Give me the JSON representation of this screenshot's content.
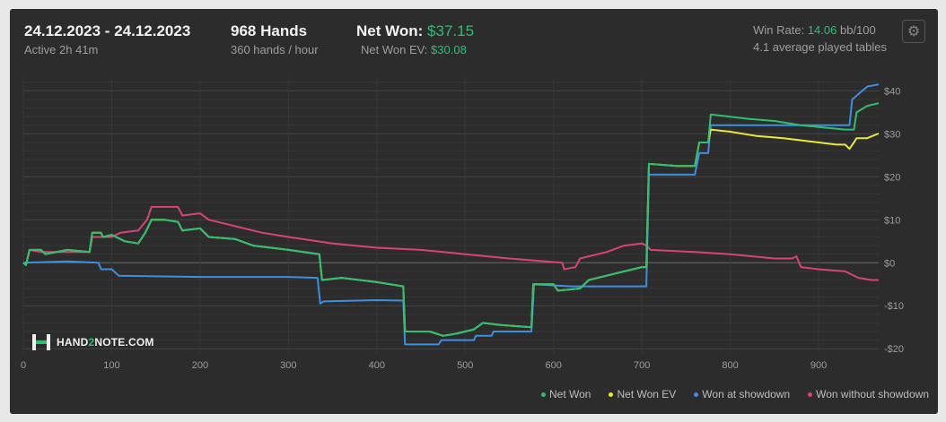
{
  "header": {
    "date_range": "24.12.2023 - 24.12.2023",
    "active": "Active 2h 41m",
    "hands": "968 Hands",
    "hands_per_hour": "360 hands / hour",
    "net_won_label": "Net Won:",
    "net_won_value": "$37.15",
    "net_won_ev_label": "Net Won  EV:",
    "net_won_ev_value": "$30.08",
    "win_rate_label": "Win Rate:",
    "win_rate_value": "14.06",
    "win_rate_unit": "bb/100",
    "avg_tables": "4.1 average played tables",
    "settings_icon": "gear-icon"
  },
  "logo": {
    "text_pre": "HAND",
    "text_mid": "2",
    "text_post": "NOTE.COM"
  },
  "colors": {
    "net_won": "#2fbf71",
    "net_won_ev": "#e8e83a",
    "showdown": "#3d8fe0",
    "non_showdown": "#d6457a",
    "background": "#2c2c2c"
  },
  "chart_data": {
    "type": "line",
    "xlim": [
      0,
      968
    ],
    "ylim": [
      -21,
      43
    ],
    "x_ticks": [
      0,
      100,
      200,
      300,
      400,
      500,
      600,
      700,
      800,
      900
    ],
    "y_ticks": [
      -20,
      -10,
      0,
      10,
      20,
      30,
      40
    ],
    "y_tick_labels": [
      "-$20",
      "-$10",
      "$0",
      "$10",
      "$20",
      "$30",
      "$40"
    ],
    "grid": true,
    "legend_position": "bottom-right",
    "series": [
      {
        "name": "Net Won",
        "color": "#2fbf71",
        "points": [
          [
            0,
            0
          ],
          [
            3,
            -0.5
          ],
          [
            7,
            3
          ],
          [
            20,
            3
          ],
          [
            25,
            2
          ],
          [
            50,
            3
          ],
          [
            75,
            2.5
          ],
          [
            78,
            7
          ],
          [
            88,
            7
          ],
          [
            90,
            6
          ],
          [
            100,
            6.5
          ],
          [
            115,
            5
          ],
          [
            130,
            4.5
          ],
          [
            138,
            7
          ],
          [
            145,
            10
          ],
          [
            160,
            10
          ],
          [
            175,
            9.5
          ],
          [
            180,
            7.5
          ],
          [
            200,
            8
          ],
          [
            210,
            6
          ],
          [
            240,
            5.5
          ],
          [
            260,
            4
          ],
          [
            300,
            3
          ],
          [
            335,
            2
          ],
          [
            338,
            -4
          ],
          [
            360,
            -3.5
          ],
          [
            400,
            -4.5
          ],
          [
            430,
            -5.5
          ],
          [
            432,
            -16
          ],
          [
            460,
            -16
          ],
          [
            475,
            -17
          ],
          [
            490,
            -16.5
          ],
          [
            500,
            -16
          ],
          [
            510,
            -15.5
          ],
          [
            520,
            -14
          ],
          [
            540,
            -14.5
          ],
          [
            575,
            -15
          ],
          [
            577,
            -5
          ],
          [
            600,
            -5
          ],
          [
            605,
            -6.5
          ],
          [
            630,
            -6
          ],
          [
            640,
            -4
          ],
          [
            660,
            -3
          ],
          [
            680,
            -2
          ],
          [
            700,
            -1
          ],
          [
            705,
            -1
          ],
          [
            708,
            23
          ],
          [
            740,
            22.5
          ],
          [
            760,
            22.5
          ],
          [
            765,
            28
          ],
          [
            775,
            28
          ],
          [
            778,
            34.5
          ],
          [
            800,
            34
          ],
          [
            820,
            33.5
          ],
          [
            850,
            33
          ],
          [
            880,
            32
          ],
          [
            905,
            31.5
          ],
          [
            930,
            31
          ],
          [
            940,
            31
          ],
          [
            943,
            35
          ],
          [
            955,
            36.5
          ],
          [
            968,
            37.15
          ]
        ]
      },
      {
        "name": "Net Won  EV",
        "color": "#e8e83a",
        "points": [
          [
            0,
            0
          ],
          [
            3,
            -0.5
          ],
          [
            7,
            3
          ],
          [
            20,
            3
          ],
          [
            25,
            2
          ],
          [
            50,
            3
          ],
          [
            75,
            2.5
          ],
          [
            78,
            7
          ],
          [
            88,
            7
          ],
          [
            90,
            6
          ],
          [
            100,
            6.5
          ],
          [
            115,
            5
          ],
          [
            130,
            4.5
          ],
          [
            138,
            7
          ],
          [
            145,
            10
          ],
          [
            160,
            10
          ],
          [
            175,
            9.5
          ],
          [
            180,
            7.5
          ],
          [
            200,
            8
          ],
          [
            210,
            6
          ],
          [
            240,
            5.5
          ],
          [
            260,
            4
          ],
          [
            300,
            3
          ],
          [
            335,
            2
          ],
          [
            338,
            -4
          ],
          [
            360,
            -3.5
          ],
          [
            400,
            -4.5
          ],
          [
            430,
            -5.5
          ],
          [
            432,
            -16
          ],
          [
            460,
            -16
          ],
          [
            475,
            -17
          ],
          [
            490,
            -16.5
          ],
          [
            500,
            -16
          ],
          [
            510,
            -15.5
          ],
          [
            520,
            -14
          ],
          [
            540,
            -14.5
          ],
          [
            575,
            -15
          ],
          [
            577,
            -5
          ],
          [
            600,
            -5
          ],
          [
            605,
            -6.5
          ],
          [
            630,
            -6
          ],
          [
            640,
            -4
          ],
          [
            660,
            -3
          ],
          [
            680,
            -2
          ],
          [
            700,
            -1
          ],
          [
            705,
            -1
          ],
          [
            708,
            23
          ],
          [
            740,
            22.5
          ],
          [
            760,
            22.5
          ],
          [
            765,
            28
          ],
          [
            775,
            28
          ],
          [
            778,
            31
          ],
          [
            800,
            30.5
          ],
          [
            830,
            29.5
          ],
          [
            860,
            29
          ],
          [
            880,
            28.5
          ],
          [
            900,
            28
          ],
          [
            920,
            27.5
          ],
          [
            930,
            27.5
          ],
          [
            935,
            26.5
          ],
          [
            940,
            28
          ],
          [
            943,
            29
          ],
          [
            955,
            29
          ],
          [
            968,
            30.08
          ]
        ]
      },
      {
        "name": "Won at showdown",
        "color": "#3d8fe0",
        "points": [
          [
            0,
            0
          ],
          [
            50,
            0.3
          ],
          [
            85,
            0
          ],
          [
            88,
            -1.5
          ],
          [
            100,
            -1.5
          ],
          [
            108,
            -3
          ],
          [
            200,
            -3.3
          ],
          [
            300,
            -3.3
          ],
          [
            333,
            -3.5
          ],
          [
            336,
            -9.5
          ],
          [
            340,
            -9
          ],
          [
            400,
            -8.7
          ],
          [
            430,
            -8.8
          ],
          [
            432,
            -19
          ],
          [
            470,
            -19
          ],
          [
            473,
            -18
          ],
          [
            510,
            -18
          ],
          [
            512,
            -17
          ],
          [
            530,
            -17
          ],
          [
            532,
            -16
          ],
          [
            575,
            -16
          ],
          [
            578,
            -5
          ],
          [
            620,
            -5.5
          ],
          [
            660,
            -5.5
          ],
          [
            705,
            -5.5
          ],
          [
            708,
            20.5
          ],
          [
            760,
            20.5
          ],
          [
            765,
            25.5
          ],
          [
            775,
            25.5
          ],
          [
            778,
            32
          ],
          [
            935,
            32
          ],
          [
            938,
            38
          ],
          [
            955,
            41
          ],
          [
            968,
            41.5
          ]
        ]
      },
      {
        "name": "Won without showdown",
        "color": "#d6457a",
        "points": [
          [
            0,
            0
          ],
          [
            3,
            -0.5
          ],
          [
            7,
            3
          ],
          [
            20,
            2.5
          ],
          [
            40,
            2.5
          ],
          [
            75,
            2.5
          ],
          [
            78,
            6
          ],
          [
            100,
            6
          ],
          [
            110,
            7
          ],
          [
            130,
            7.5
          ],
          [
            140,
            10
          ],
          [
            145,
            13
          ],
          [
            175,
            13
          ],
          [
            180,
            11
          ],
          [
            200,
            11.5
          ],
          [
            210,
            10
          ],
          [
            240,
            8.5
          ],
          [
            270,
            7
          ],
          [
            300,
            6
          ],
          [
            350,
            4.5
          ],
          [
            400,
            3.5
          ],
          [
            450,
            3
          ],
          [
            500,
            2
          ],
          [
            550,
            1
          ],
          [
            580,
            0.5
          ],
          [
            610,
            0
          ],
          [
            612,
            -1.5
          ],
          [
            625,
            -1
          ],
          [
            630,
            1
          ],
          [
            660,
            2.5
          ],
          [
            680,
            4
          ],
          [
            700,
            4.5
          ],
          [
            705,
            4
          ],
          [
            710,
            3
          ],
          [
            760,
            2.5
          ],
          [
            800,
            2
          ],
          [
            850,
            1
          ],
          [
            870,
            1
          ],
          [
            875,
            1.5
          ],
          [
            880,
            -1
          ],
          [
            900,
            -1.5
          ],
          [
            930,
            -2
          ],
          [
            945,
            -3.5
          ],
          [
            960,
            -4
          ],
          [
            968,
            -4
          ]
        ]
      }
    ]
  }
}
